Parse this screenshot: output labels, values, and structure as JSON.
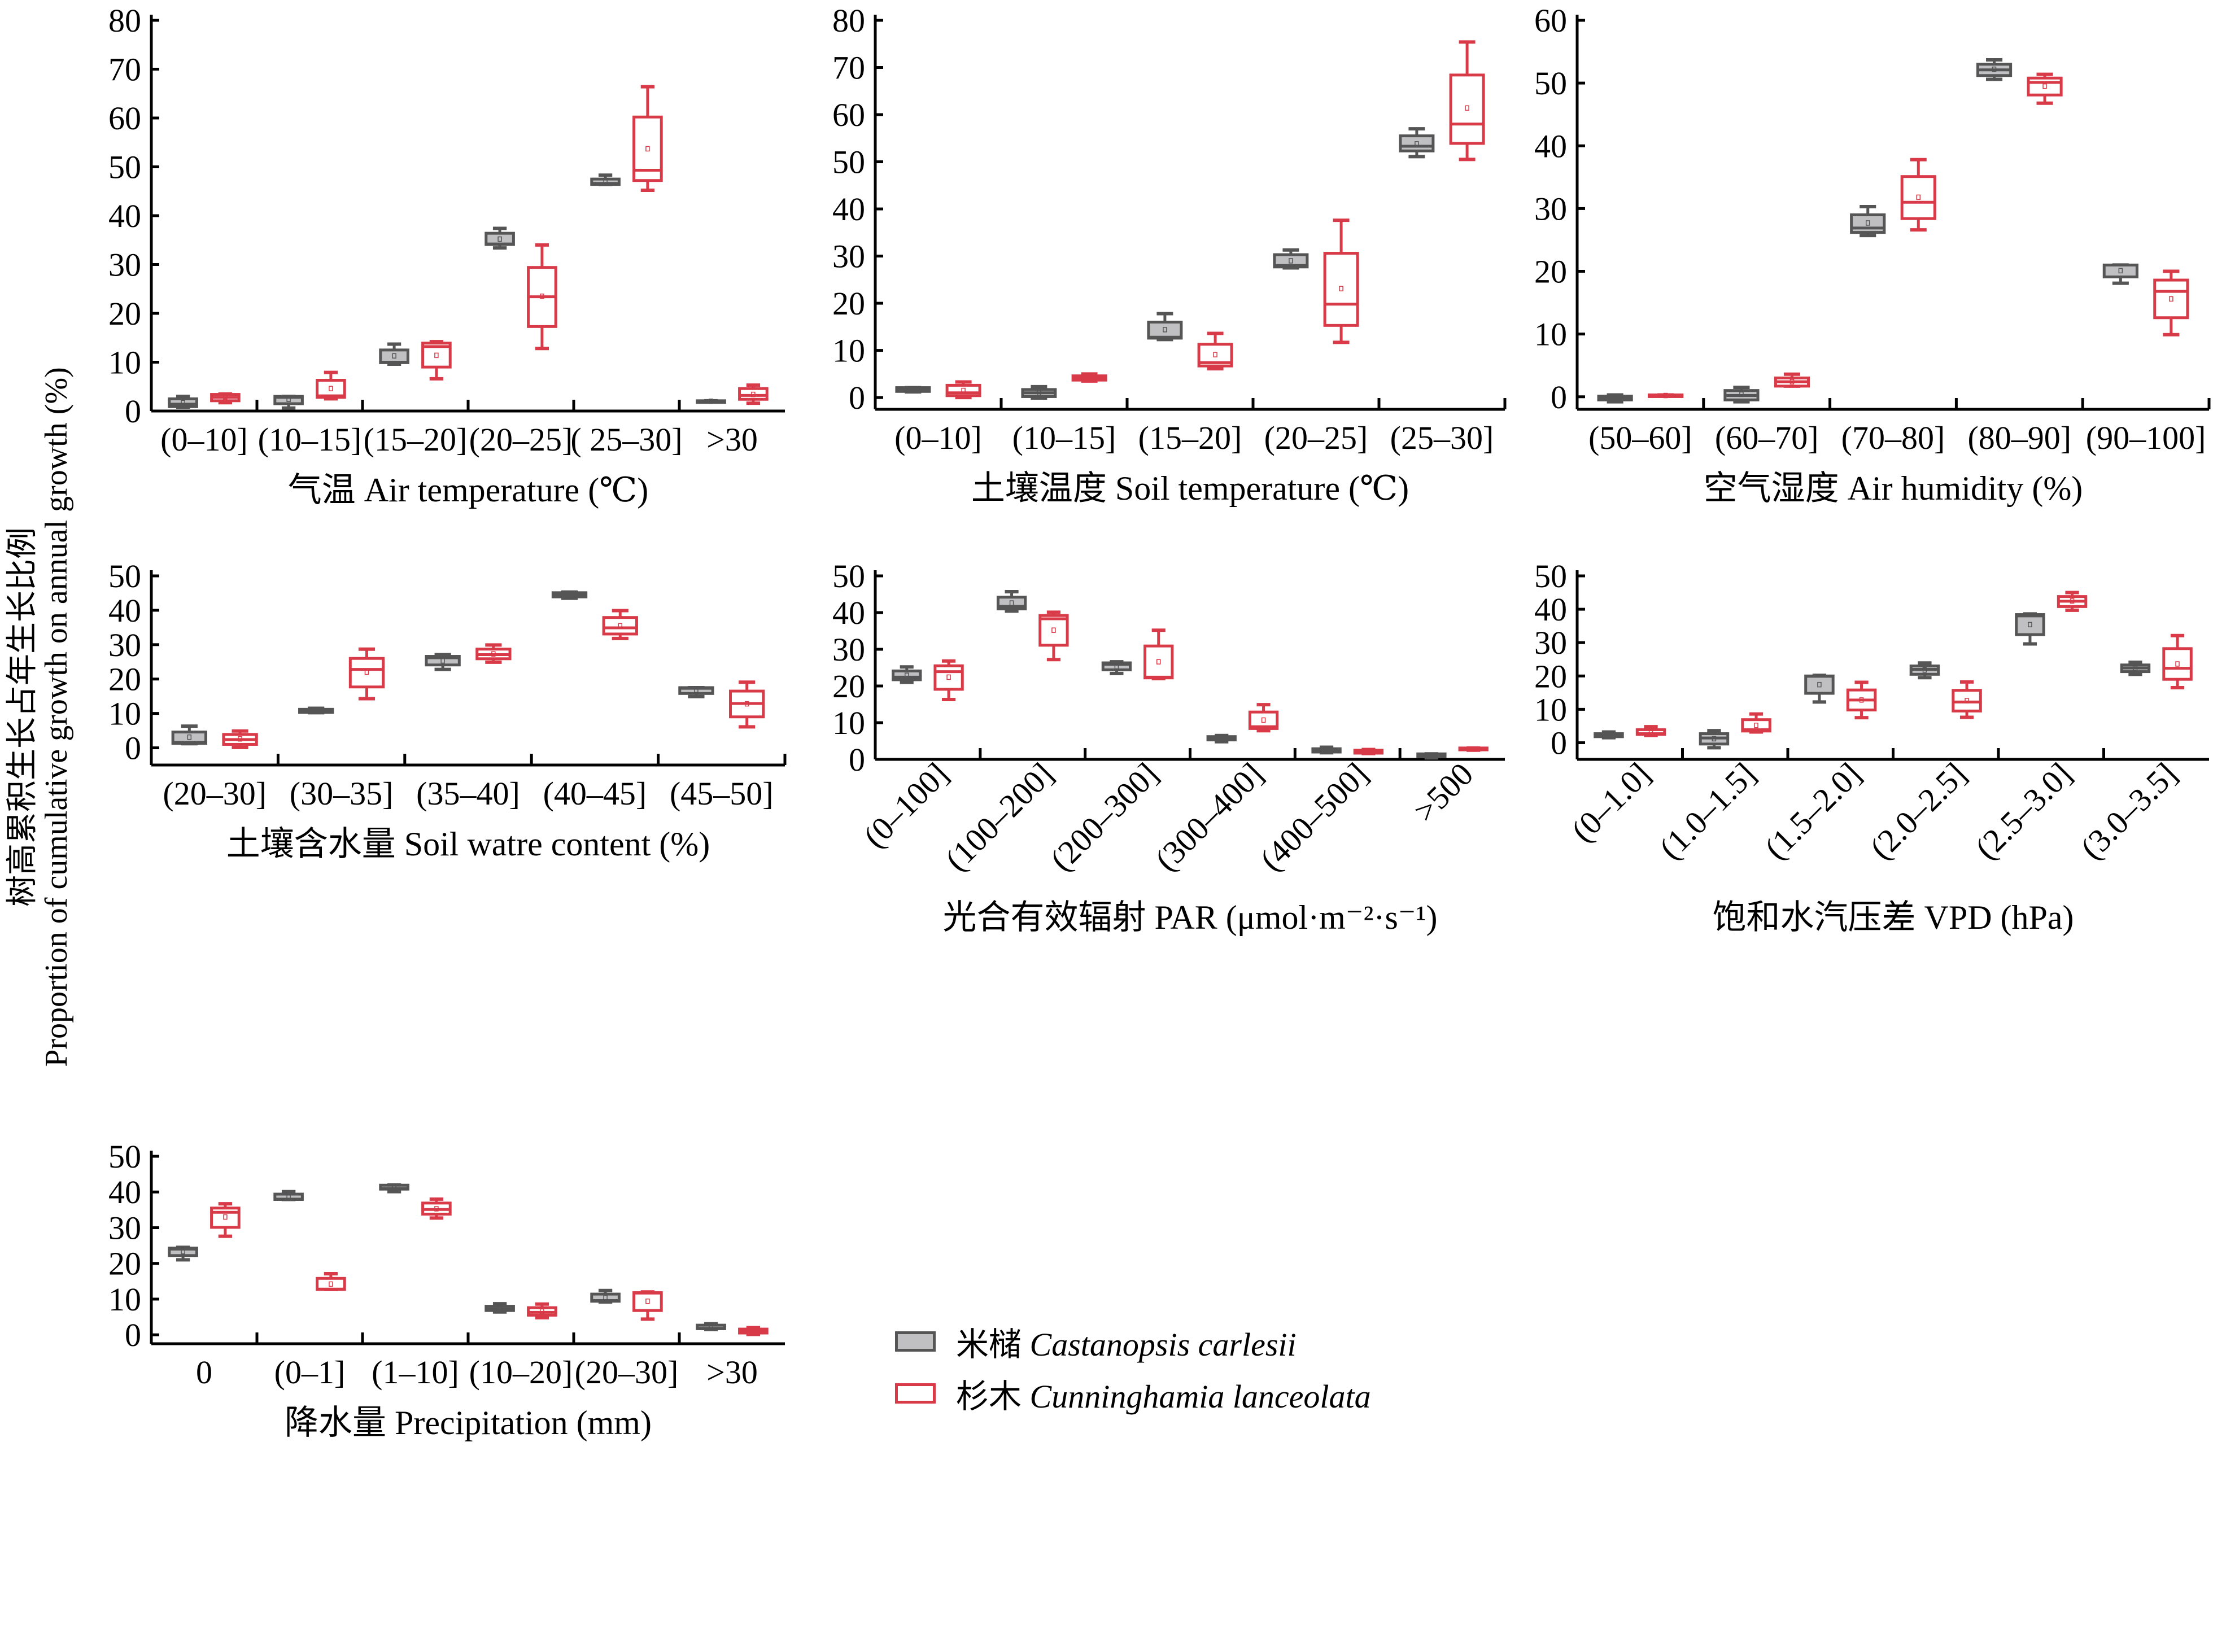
{
  "colors": {
    "castanopsis_fill": "#c0bfc2",
    "castanopsis_stroke": "#555555",
    "cunninghamia_stroke": "#d93a48",
    "cunninghamia_fill": "#ffffff"
  },
  "shared_ylabel": {
    "zh": "树高累积生长占年生长比例",
    "en": "Proportion of cumulative growth on annual growth (%)"
  },
  "legend": {
    "items": [
      {
        "zh": "米槠",
        "latin": "Castanopsis carlesii",
        "style": "gray"
      },
      {
        "zh": "杉木",
        "latin": "Cunninghamia lanceolata",
        "style": "red"
      }
    ]
  },
  "chart_data": [
    {
      "id": "air-temperature",
      "type": "box",
      "xlabel": "气温 Air temperature (℃)",
      "ylim": [
        0,
        80
      ],
      "yticks": [
        0,
        10,
        20,
        30,
        40,
        50,
        60,
        70,
        80
      ],
      "categories": [
        "(0–10]",
        "(10–15]",
        "(15–20]",
        "(20–25]",
        "( 25–30]",
        ">30"
      ],
      "rotate_labels": false,
      "series": [
        {
          "name": "米槠 Castanopsis carlesii",
          "boxes": [
            {
              "min": 0.8,
              "q1": 0.9,
              "median": 1.4,
              "q3": 2.5,
              "max": 3.0,
              "mean": 1.7
            },
            {
              "min": 0.6,
              "q1": 1.5,
              "median": 2.8,
              "q3": 3.0,
              "max": 3.0,
              "mean": 2.4
            },
            {
              "min": 9.6,
              "q1": 9.9,
              "median": 10.0,
              "q3": 12.5,
              "max": 13.7,
              "mean": 11.3
            },
            {
              "min": 33.4,
              "q1": 34.1,
              "median": 34.2,
              "q3": 36.4,
              "max": 37.4,
              "mean": 35.2
            },
            {
              "min": 46.4,
              "q1": 46.4,
              "median": 46.6,
              "q3": 47.5,
              "max": 48.3,
              "mean": 47.2
            },
            {
              "min": 1.9,
              "q1": 1.9,
              "median": 2.0,
              "q3": 2.1,
              "max": 2.1,
              "mean": 2.0
            }
          ]
        },
        {
          "name": "杉木 Cunninghamia lanceolata",
          "boxes": [
            {
              "min": 1.7,
              "q1": 2.1,
              "median": 2.8,
              "q3": 3.4,
              "max": 3.5,
              "mean": 2.9
            },
            {
              "min": 2.5,
              "q1": 2.8,
              "median": 3.1,
              "q3": 6.3,
              "max": 7.9,
              "mean": 4.6
            },
            {
              "min": 6.6,
              "q1": 9.0,
              "median": 13.2,
              "q3": 13.9,
              "max": 14.2,
              "mean": 11.4
            },
            {
              "min": 12.8,
              "q1": 17.3,
              "median": 23.4,
              "q3": 29.4,
              "max": 34.0,
              "mean": 23.5
            },
            {
              "min": 45.2,
              "q1": 47.2,
              "median": 49.3,
              "q3": 60.2,
              "max": 66.4,
              "mean": 53.7
            },
            {
              "min": 1.6,
              "q1": 2.4,
              "median": 3.2,
              "q3": 4.6,
              "max": 5.3,
              "mean": 3.4
            }
          ]
        }
      ]
    },
    {
      "id": "soil-temperature",
      "type": "box",
      "xlabel": "土壤温度 Soil temperature (℃)",
      "ylim": [
        -2.5,
        80
      ],
      "yticks": [
        0,
        10,
        20,
        30,
        40,
        50,
        60,
        70,
        80
      ],
      "categories": [
        "(0–10]",
        "(10–15]",
        "(15–20]",
        "(20–25]",
        "(25–30]"
      ],
      "rotate_labels": false,
      "series": [
        {
          "name": "米槠 Castanopsis carlesii",
          "boxes": [
            {
              "min": 1.2,
              "q1": 1.3,
              "median": 1.7,
              "q3": 2.1,
              "max": 2.1,
              "mean": 1.7
            },
            {
              "min": -0.1,
              "q1": 0.2,
              "median": 1.0,
              "q3": 1.7,
              "max": 2.3,
              "mean": 1.0
            },
            {
              "min": 12.3,
              "q1": 12.6,
              "median": 12.8,
              "q3": 16.0,
              "max": 17.8,
              "mean": 14.4
            },
            {
              "min": 27.5,
              "q1": 27.7,
              "median": 28.0,
              "q3": 30.3,
              "max": 31.3,
              "mean": 29.0
            },
            {
              "min": 51.1,
              "q1": 52.3,
              "median": 53.3,
              "q3": 55.5,
              "max": 57.0,
              "mean": 53.8
            }
          ]
        },
        {
          "name": "杉木 Cunninghamia lanceolata",
          "boxes": [
            {
              "min": 0.0,
              "q1": 0.4,
              "median": 1.0,
              "q3": 2.6,
              "max": 3.3,
              "mean": 1.5
            },
            {
              "min": 3.5,
              "q1": 3.7,
              "median": 4.2,
              "q3": 4.6,
              "max": 5.0,
              "mean": 4.2
            },
            {
              "min": 6.1,
              "q1": 6.7,
              "median": 7.4,
              "q3": 11.3,
              "max": 13.6,
              "mean": 9.1
            },
            {
              "min": 11.7,
              "q1": 15.3,
              "median": 19.8,
              "q3": 30.6,
              "max": 37.6,
              "mean": 23.1
            },
            {
              "min": 50.5,
              "q1": 53.9,
              "median": 58.0,
              "q3": 68.4,
              "max": 75.4,
              "mean": 61.4
            }
          ]
        }
      ]
    },
    {
      "id": "air-humidity",
      "type": "box",
      "xlabel": "空气湿度 Air humidity (%)",
      "ylim": [
        -2,
        60
      ],
      "yticks": [
        0,
        10,
        20,
        30,
        40,
        50,
        60
      ],
      "categories": [
        "(50–60]",
        "(60–70]",
        "(70–80]",
        "(80–90]",
        "(90–100]"
      ],
      "rotate_labels": false,
      "series": [
        {
          "name": "米槠 Castanopsis carlesii",
          "boxes": [
            {
              "min": -0.8,
              "q1": -0.5,
              "median": -0.2,
              "q3": 0.1,
              "max": 0.3,
              "mean": -0.2
            },
            {
              "min": -0.8,
              "q1": -0.5,
              "median": 0.2,
              "q3": 1.0,
              "max": 1.5,
              "mean": 0.4
            },
            {
              "min": 25.7,
              "q1": 26.2,
              "median": 26.9,
              "q3": 29.0,
              "max": 30.3,
              "mean": 27.7
            },
            {
              "min": 50.6,
              "q1": 51.2,
              "median": 52.1,
              "q3": 53.0,
              "max": 53.7,
              "mean": 52.2
            },
            {
              "min": 18.1,
              "q1": 19.1,
              "median": 19.1,
              "q3": 21.0,
              "max": 21.0,
              "mean": 20.1
            }
          ]
        },
        {
          "name": "杉木 Cunninghamia lanceolata",
          "boxes": [
            {
              "min": 0.1,
              "q1": 0.1,
              "median": 0.2,
              "q3": 0.3,
              "max": 0.3,
              "mean": 0.2
            },
            {
              "min": 1.7,
              "q1": 1.7,
              "median": 2.4,
              "q3": 3.0,
              "max": 3.6,
              "mean": 2.4
            },
            {
              "min": 26.6,
              "q1": 28.4,
              "median": 31.0,
              "q3": 35.1,
              "max": 37.8,
              "mean": 31.8
            },
            {
              "min": 46.8,
              "q1": 48.1,
              "median": 50.1,
              "q3": 50.8,
              "max": 51.4,
              "mean": 49.5
            },
            {
              "min": 9.9,
              "q1": 12.6,
              "median": 16.8,
              "q3": 18.6,
              "max": 20.0,
              "mean": 15.6
            }
          ]
        }
      ]
    },
    {
      "id": "soil-water-content",
      "type": "box",
      "xlabel": "土壤含水量 Soil watre content (%)",
      "ylim": [
        -5,
        50
      ],
      "yticks": [
        0,
        10,
        20,
        30,
        40,
        50
      ],
      "categories": [
        "(20–30]",
        "(30–35]",
        "(35–40]",
        "(40–45]",
        "(45–50]"
      ],
      "rotate_labels": false,
      "series": [
        {
          "name": "米槠 Castanopsis carlesii",
          "boxes": [
            {
              "min": 1.2,
              "q1": 1.3,
              "median": 1.6,
              "q3": 4.6,
              "max": 6.3,
              "mean": 3.1
            },
            {
              "min": 10.2,
              "q1": 10.3,
              "median": 10.6,
              "q3": 11.2,
              "max": 11.5,
              "mean": 10.8
            },
            {
              "min": 22.8,
              "q1": 24.1,
              "median": 26.2,
              "q3": 26.6,
              "max": 27.1,
              "mean": 25.3
            },
            {
              "min": 43.5,
              "q1": 43.9,
              "median": 44.5,
              "q3": 45.1,
              "max": 45.3,
              "mean": 44.5
            },
            {
              "min": 14.9,
              "q1": 15.8,
              "median": 17.3,
              "q3": 17.5,
              "max": 17.5,
              "mean": 16.8
            }
          ]
        },
        {
          "name": "杉木 Cunninghamia lanceolata",
          "boxes": [
            {
              "min": 0.1,
              "q1": 1.0,
              "median": 2.4,
              "q3": 3.9,
              "max": 4.9,
              "mean": 2.6
            },
            {
              "min": 14.3,
              "q1": 17.7,
              "median": 22.8,
              "q3": 26.0,
              "max": 28.7,
              "mean": 22.0
            },
            {
              "min": 24.9,
              "q1": 25.9,
              "median": 27.1,
              "q3": 28.7,
              "max": 29.9,
              "mean": 27.3
            },
            {
              "min": 31.8,
              "q1": 33.1,
              "median": 34.9,
              "q3": 37.9,
              "max": 39.9,
              "mean": 35.5
            },
            {
              "min": 6.1,
              "q1": 9.0,
              "median": 12.9,
              "q3": 16.5,
              "max": 19.1,
              "mean": 12.8
            }
          ]
        }
      ]
    },
    {
      "id": "par",
      "type": "box",
      "xlabel": "光合有效辐射 PAR (μmol·m⁻²·s⁻¹)",
      "ylim": [
        0,
        50
      ],
      "yticks": [
        0,
        10,
        20,
        30,
        40,
        50
      ],
      "categories": [
        "(0–100]",
        "(100–200]",
        "(200–300]",
        "(300–400]",
        "(400–500]",
        ">500"
      ],
      "rotate_labels": true,
      "series": [
        {
          "name": "米槠 Castanopsis carlesii",
          "boxes": [
            {
              "min": 21.0,
              "q1": 21.7,
              "median": 22.4,
              "q3": 24.1,
              "max": 25.2,
              "mean": 22.9
            },
            {
              "min": 40.4,
              "q1": 41.0,
              "median": 41.7,
              "q3": 44.2,
              "max": 45.7,
              "mean": 42.6
            },
            {
              "min": 23.4,
              "q1": 24.4,
              "median": 25.9,
              "q3": 26.3,
              "max": 26.6,
              "mean": 25.3
            },
            {
              "min": 4.8,
              "q1": 5.3,
              "median": 5.7,
              "q3": 6.2,
              "max": 6.5,
              "mean": 5.8
            },
            {
              "min": 1.8,
              "q1": 2.0,
              "median": 2.4,
              "q3": 2.9,
              "max": 3.3,
              "mean": 2.4
            },
            {
              "min": 0.4,
              "q1": 0.7,
              "median": 1.1,
              "q3": 1.5,
              "max": 1.5,
              "mean": 1.1
            }
          ]
        },
        {
          "name": "杉木 Cunninghamia lanceolata",
          "boxes": [
            {
              "min": 16.3,
              "q1": 19.1,
              "median": 23.9,
              "q3": 25.5,
              "max": 26.8,
              "mean": 22.4
            },
            {
              "min": 27.2,
              "q1": 31.1,
              "median": 38.3,
              "q3": 39.2,
              "max": 40.1,
              "mean": 35.2
            },
            {
              "min": 22.0,
              "q1": 22.2,
              "median": 22.4,
              "q3": 30.9,
              "max": 35.2,
              "mean": 26.6
            },
            {
              "min": 7.8,
              "q1": 8.4,
              "median": 8.9,
              "q3": 12.9,
              "max": 14.9,
              "mean": 10.7
            },
            {
              "min": 1.6,
              "q1": 1.7,
              "median": 2.0,
              "q3": 2.5,
              "max": 2.7,
              "mean": 2.1
            },
            {
              "min": 2.5,
              "q1": 2.6,
              "median": 2.8,
              "q3": 3.1,
              "max": 3.1,
              "mean": 2.8
            }
          ]
        }
      ]
    },
    {
      "id": "vpd",
      "type": "box",
      "xlabel": "饱和水汽压差 VPD (hPa)",
      "ylim": [
        -5,
        50
      ],
      "yticks": [
        0,
        10,
        20,
        30,
        40,
        50
      ],
      "categories": [
        "(0–1.0]",
        "(1.0–1.5]",
        "(1.5–2.0]",
        "(2.0–2.5]",
        "(2.5–3.0]",
        "(3.0–3.5]"
      ],
      "rotate_labels": true,
      "series": [
        {
          "name": "米槠 Castanopsis carlesii",
          "boxes": [
            {
              "min": 1.5,
              "q1": 1.8,
              "median": 2.2,
              "q3": 2.7,
              "max": 3.2,
              "mean": 2.3
            },
            {
              "min": -1.5,
              "q1": -0.4,
              "median": 1.4,
              "q3": 2.7,
              "max": 3.6,
              "mean": 1.2
            },
            {
              "min": 12.2,
              "q1": 14.8,
              "median": 19.9,
              "q3": 20.0,
              "max": 20.2,
              "mean": 17.4
            },
            {
              "min": 19.5,
              "q1": 20.5,
              "median": 22.0,
              "q3": 23.0,
              "max": 23.9,
              "mean": 21.8
            },
            {
              "min": 29.6,
              "q1": 32.4,
              "median": 38.0,
              "q3": 38.4,
              "max": 38.6,
              "mean": 35.4
            },
            {
              "min": 20.5,
              "q1": 21.3,
              "median": 22.4,
              "q3": 23.3,
              "max": 24.1,
              "mean": 22.3
            }
          ]
        },
        {
          "name": "杉木 Cunninghamia lanceolata",
          "boxes": [
            {
              "min": 2.2,
              "q1": 2.5,
              "median": 2.7,
              "q3": 3.9,
              "max": 4.8,
              "mean": 3.3
            },
            {
              "min": 3.2,
              "q1": 3.5,
              "median": 3.9,
              "q3": 6.9,
              "max": 8.6,
              "mean": 5.2
            },
            {
              "min": 7.5,
              "q1": 9.8,
              "median": 12.8,
              "q3": 15.8,
              "max": 18.1,
              "mean": 12.8
            },
            {
              "min": 7.6,
              "q1": 9.5,
              "median": 12.2,
              "q3": 15.7,
              "max": 18.2,
              "mean": 12.6
            },
            {
              "min": 39.7,
              "q1": 40.8,
              "median": 42.4,
              "q3": 43.8,
              "max": 45.0,
              "mean": 42.5
            },
            {
              "min": 16.5,
              "q1": 19.0,
              "median": 22.3,
              "q3": 28.2,
              "max": 32.1,
              "mean": 23.6
            }
          ]
        }
      ]
    },
    {
      "id": "precipitation",
      "type": "box",
      "xlabel": "降水量 Precipitation (mm)",
      "ylim": [
        -2.5,
        50
      ],
      "yticks": [
        0,
        10,
        20,
        30,
        40,
        50
      ],
      "categories": [
        "0",
        "(0–1]",
        "(1–10]",
        "(10–20]",
        "(20–30]",
        ">30"
      ],
      "rotate_labels": false,
      "series": [
        {
          "name": "米槠 Castanopsis carlesii",
          "boxes": [
            {
              "min": 21.0,
              "q1": 22.2,
              "median": 24.0,
              "q3": 24.3,
              "max": 24.5,
              "mean": 23.3
            },
            {
              "min": 37.9,
              "q1": 37.9,
              "median": 38.0,
              "q3": 39.4,
              "max": 40.1,
              "mean": 38.7
            },
            {
              "min": 40.1,
              "q1": 40.8,
              "median": 41.0,
              "q3": 41.9,
              "max": 42.0,
              "mean": 41.3
            },
            {
              "min": 6.4,
              "q1": 6.8,
              "median": 7.2,
              "q3": 8.0,
              "max": 8.7,
              "mean": 7.5
            },
            {
              "min": 9.2,
              "q1": 9.4,
              "median": 9.6,
              "q3": 11.4,
              "max": 12.4,
              "mean": 10.4
            },
            {
              "min": 1.5,
              "q1": 1.7,
              "median": 1.8,
              "q3": 2.7,
              "max": 3.1,
              "mean": 2.2
            }
          ]
        },
        {
          "name": "杉木 Cunninghamia lanceolata",
          "boxes": [
            {
              "min": 27.6,
              "q1": 30.1,
              "median": 34.3,
              "q3": 35.5,
              "max": 36.7,
              "mean": 33.0
            },
            {
              "min": 12.7,
              "q1": 12.7,
              "median": 12.8,
              "q3": 15.8,
              "max": 17.1,
              "mean": 14.2
            },
            {
              "min": 32.7,
              "q1": 33.8,
              "median": 35.1,
              "q3": 36.9,
              "max": 38.0,
              "mean": 35.3
            },
            {
              "min": 4.8,
              "q1": 5.5,
              "median": 6.3,
              "q3": 7.6,
              "max": 8.6,
              "mean": 6.6
            },
            {
              "min": 4.4,
              "q1": 6.8,
              "median": 11.7,
              "q3": 11.8,
              "max": 12.0,
              "mean": 9.4
            },
            {
              "min": 0.1,
              "q1": 0.5,
              "median": 0.9,
              "q3": 1.6,
              "max": 2.0,
              "mean": 1.1
            }
          ]
        }
      ]
    }
  ]
}
